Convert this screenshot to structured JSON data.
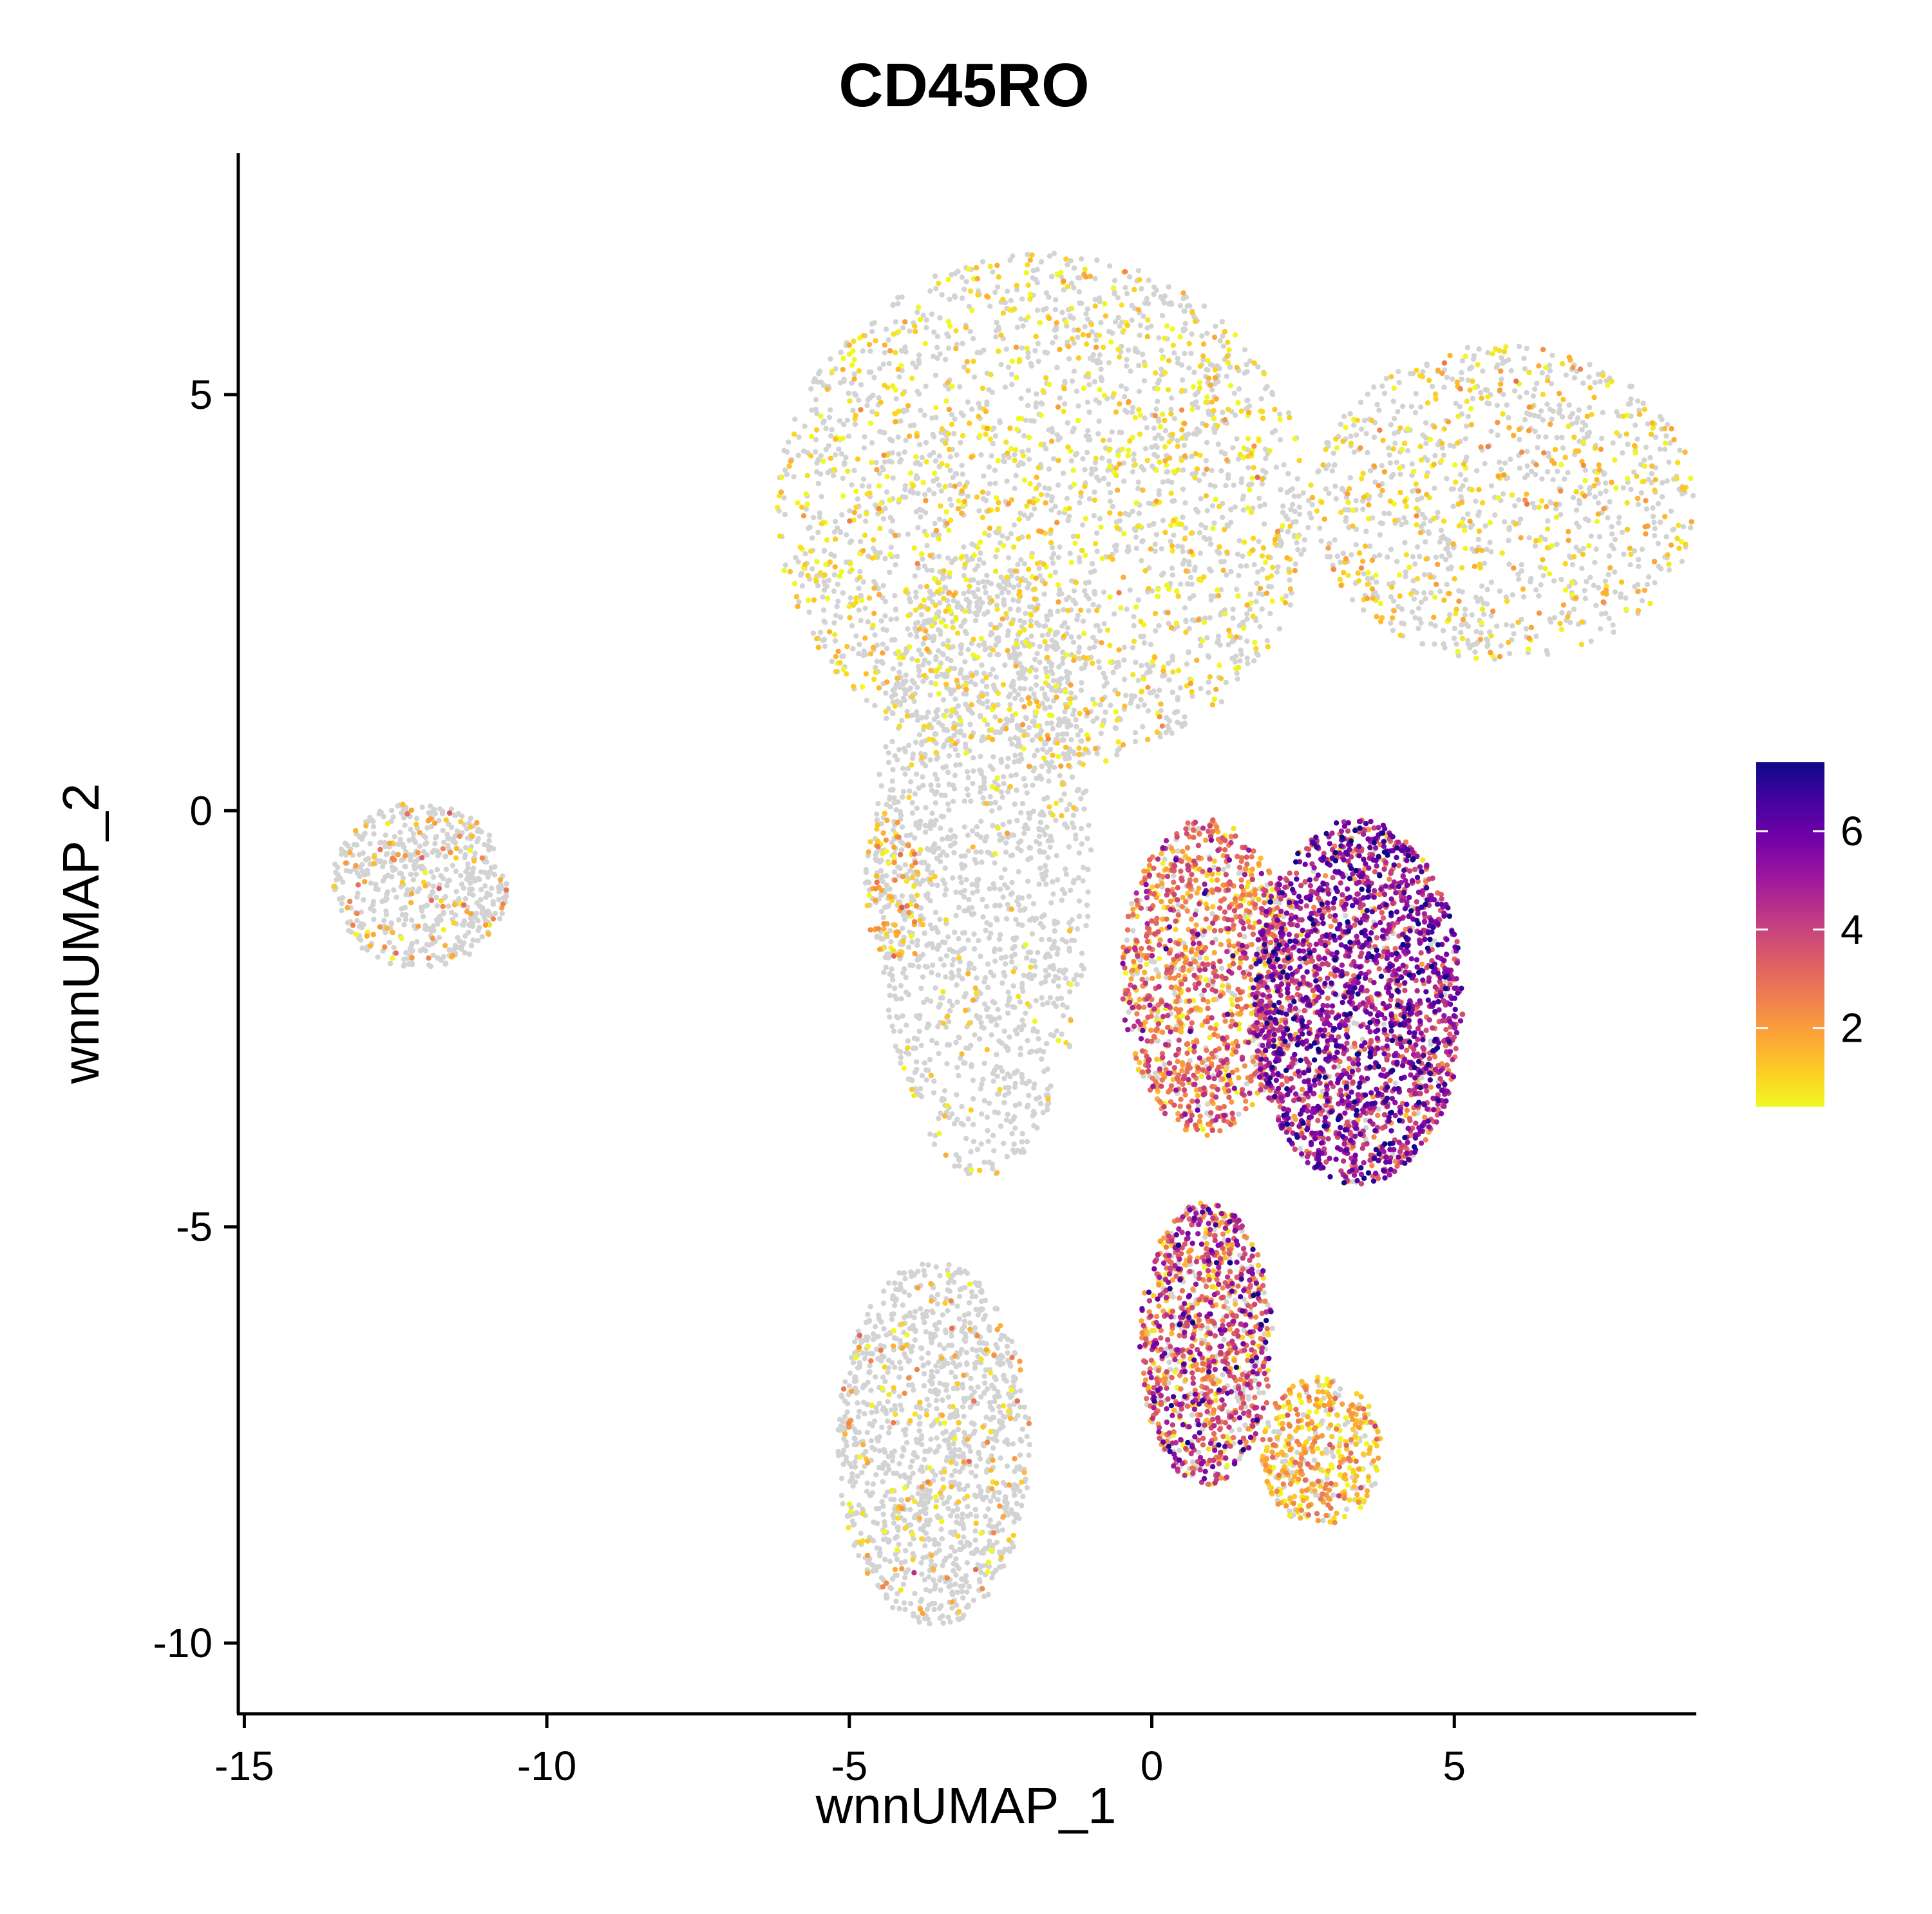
{
  "chart_data": {
    "type": "scatter",
    "title": "CD45RO",
    "xlabel": "wnnUMAP_1",
    "ylabel": "wnnUMAP_2",
    "xlim": [
      -15.1,
      9.0
    ],
    "ylim": [
      -10.85,
      7.9
    ],
    "xticks": [
      -15,
      -10,
      -5,
      0,
      5
    ],
    "xtick_labels": [
      "-15",
      "-10",
      "-5",
      "0",
      "5"
    ],
    "yticks": [
      -10,
      -5,
      0,
      5
    ],
    "ytick_labels": [
      "-10",
      "-5",
      "0",
      "5"
    ],
    "grid": false,
    "legend_position": "right",
    "background_point_color": "#d3d3d3",
    "colorscale": {
      "name": "plasma (reversed)",
      "min": 0.4,
      "max": 7.4,
      "ticks": [
        2,
        4,
        6
      ],
      "tick_labels": [
        "2",
        "4",
        "6"
      ],
      "stops": [
        "#f0f921",
        "#fdca26",
        "#fb9f3a",
        "#ed7953",
        "#d8576b",
        "#bd3786",
        "#9c179e",
        "#7201a8",
        "#46039f",
        "#0d0887"
      ]
    },
    "clusters": [
      {
        "region": "top-left lobe",
        "cx": -1.8,
        "cy": 3.6,
        "rx": 4.4,
        "ry": 3.1,
        "n": 2600,
        "expressing_fraction": 0.33,
        "level_mean": 0.9,
        "level_sd": 0.6
      },
      {
        "region": "top-right arm",
        "cx": 5.8,
        "cy": 3.7,
        "rx": 3.2,
        "ry": 1.9,
        "n": 1100,
        "expressing_fraction": 0.35,
        "level_mean": 1.1,
        "level_sd": 0.7
      },
      {
        "region": "central stem",
        "cx": -2.8,
        "cy": -0.6,
        "rx": 1.8,
        "ry": 3.8,
        "n": 1500,
        "expressing_fraction": 0.06,
        "level_mean": 0.9,
        "level_sd": 0.5
      },
      {
        "region": "left small island",
        "cx": -4.3,
        "cy": -0.9,
        "rx": 0.45,
        "ry": 0.9,
        "n": 140,
        "expressing_fraction": 0.6,
        "level_mean": 1.5,
        "level_sd": 0.7
      },
      {
        "region": "right memory cluster",
        "cx": 3.4,
        "cy": -2.3,
        "rx": 1.75,
        "ry": 2.2,
        "n": 2300,
        "expressing_fraction": 0.95,
        "level_mean": 4.8,
        "level_sd": 1.5
      },
      {
        "region": "right cluster left flank",
        "cx": 0.9,
        "cy": -2.0,
        "rx": 1.4,
        "ry": 1.9,
        "n": 1200,
        "expressing_fraction": 0.85,
        "level_mean": 2.7,
        "level_sd": 1.3
      },
      {
        "region": "lower arm",
        "cx": 0.9,
        "cy": -6.4,
        "rx": 1.1,
        "ry": 1.7,
        "n": 1100,
        "expressing_fraction": 0.8,
        "level_mean": 3.4,
        "level_sd": 1.7
      },
      {
        "region": "lower-left lobe",
        "cx": -3.6,
        "cy": -7.6,
        "rx": 1.6,
        "ry": 2.2,
        "n": 1300,
        "expressing_fraction": 0.12,
        "level_mean": 1.3,
        "level_sd": 0.8
      },
      {
        "region": "bottom-right blob",
        "cx": 2.8,
        "cy": -7.7,
        "rx": 1.0,
        "ry": 0.9,
        "n": 450,
        "expressing_fraction": 0.75,
        "level_mean": 1.6,
        "level_sd": 0.9
      },
      {
        "region": "far-left island",
        "cx": -12.1,
        "cy": -0.9,
        "rx": 1.45,
        "ry": 1.0,
        "n": 600,
        "expressing_fraction": 0.15,
        "level_mean": 1.8,
        "level_sd": 0.9
      }
    ]
  }
}
